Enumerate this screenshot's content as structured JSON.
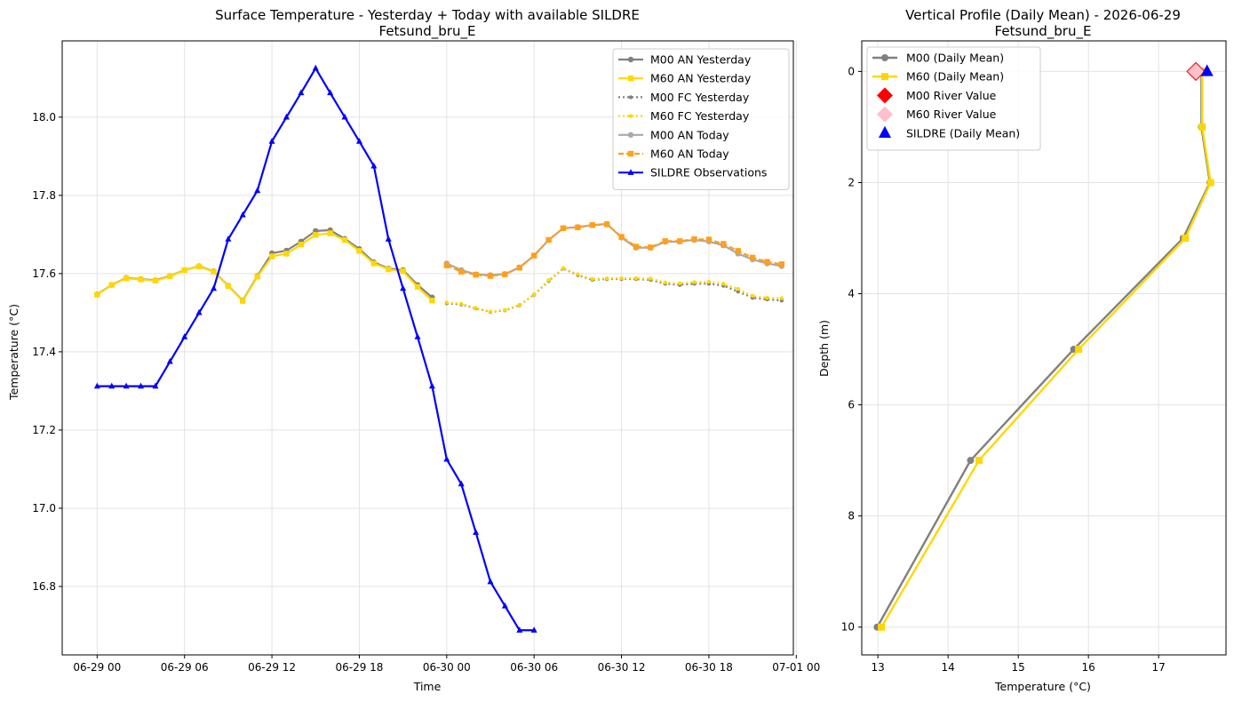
{
  "chart_data": [
    {
      "type": "line",
      "title": "Surface Temperature - Yesterday + Today with available SILDRE",
      "subtitle": "Fetsund_bru_E",
      "xlabel": "Time",
      "ylabel": "Temperature (°C)",
      "xlim": [
        -2.4,
        47.8
      ],
      "ylim": [
        16.625,
        18.195
      ],
      "x_unit": "hours since 06-29 00",
      "xticks": [
        {
          "value": 0,
          "label": "06-29 00"
        },
        {
          "value": 6,
          "label": "06-29 06"
        },
        {
          "value": 12,
          "label": "06-29 12"
        },
        {
          "value": 18,
          "label": "06-29 18"
        },
        {
          "value": 24,
          "label": "06-30 00"
        },
        {
          "value": 30,
          "label": "06-30 06"
        },
        {
          "value": 36,
          "label": "06-30 12"
        },
        {
          "value": 42,
          "label": "06-30 18"
        },
        {
          "value": 48,
          "label": "07-01 00"
        }
      ],
      "yticks": [
        16.8,
        17.0,
        17.2,
        17.4,
        17.6,
        17.8,
        18.0
      ],
      "grid": true,
      "legend_position": "top-right",
      "series": [
        {
          "name": "M00 AN Yesterday",
          "color": "#808080",
          "dash": "",
          "marker": "circle",
          "x": [
            0,
            1,
            2,
            3,
            4,
            5,
            6,
            7,
            8,
            9,
            10,
            11,
            12,
            13,
            14,
            15,
            16,
            17,
            18,
            19,
            20,
            21,
            22,
            23
          ],
          "y": [
            17.547,
            17.571,
            17.589,
            17.586,
            17.583,
            17.594,
            17.609,
            17.619,
            17.606,
            17.569,
            17.531,
            17.594,
            17.652,
            17.659,
            17.682,
            17.709,
            17.711,
            17.689,
            17.663,
            17.629,
            17.613,
            17.609,
            17.571,
            17.539
          ]
        },
        {
          "name": "M60 AN Yesterday",
          "color": "#FFD700",
          "dash": "",
          "marker": "square",
          "x": [
            0,
            1,
            2,
            3,
            4,
            5,
            6,
            7,
            8,
            9,
            10,
            11,
            12,
            13,
            14,
            15,
            16,
            17,
            18,
            19,
            20,
            21,
            22,
            23
          ],
          "y": [
            17.546,
            17.571,
            17.588,
            17.585,
            17.582,
            17.593,
            17.609,
            17.618,
            17.605,
            17.568,
            17.53,
            17.592,
            17.644,
            17.651,
            17.674,
            17.699,
            17.703,
            17.686,
            17.658,
            17.626,
            17.611,
            17.606,
            17.566,
            17.531
          ]
        },
        {
          "name": "M00 FC Yesterday",
          "color": "#808080",
          "dash": "2,3",
          "marker": "circle",
          "x": [
            24,
            25,
            26,
            27,
            28,
            29,
            30,
            31,
            32,
            33,
            34,
            35,
            36,
            37,
            38,
            39,
            40,
            41,
            42,
            43,
            44,
            45,
            46,
            47
          ],
          "y": [
            17.524,
            17.521,
            17.511,
            17.502,
            17.506,
            17.519,
            17.546,
            17.581,
            17.613,
            17.596,
            17.584,
            17.586,
            17.586,
            17.586,
            17.584,
            17.574,
            17.571,
            17.574,
            17.574,
            17.569,
            17.554,
            17.538,
            17.534,
            17.531
          ]
        },
        {
          "name": "M60 FC Yesterday",
          "color": "#FFD700",
          "dash": "2,3",
          "marker": "circle",
          "x": [
            24,
            25,
            26,
            27,
            28,
            29,
            30,
            31,
            32,
            33,
            34,
            35,
            36,
            37,
            38,
            39,
            40,
            41,
            42,
            43,
            44,
            45,
            46,
            47
          ],
          "y": [
            17.526,
            17.523,
            17.512,
            17.503,
            17.507,
            17.52,
            17.547,
            17.583,
            17.614,
            17.598,
            17.586,
            17.588,
            17.588,
            17.588,
            17.587,
            17.577,
            17.575,
            17.578,
            17.579,
            17.574,
            17.561,
            17.543,
            17.538,
            17.537
          ]
        },
        {
          "name": "M00 AN Today",
          "color": "#A9A9A9",
          "dash": "",
          "marker": "circle",
          "x": [
            24,
            25,
            26,
            27,
            28,
            29,
            30,
            31,
            32,
            33,
            34,
            35,
            36,
            37,
            38,
            39,
            40,
            41,
            42,
            43,
            44,
            45,
            46,
            47
          ],
          "y": [
            17.626,
            17.609,
            17.598,
            17.596,
            17.599,
            17.616,
            17.646,
            17.686,
            17.716,
            17.719,
            17.724,
            17.727,
            17.692,
            17.666,
            17.666,
            17.681,
            17.682,
            17.686,
            17.682,
            17.672,
            17.651,
            17.636,
            17.626,
            17.619
          ]
        },
        {
          "name": "M60 AN Today",
          "color": "#FF9F1C",
          "dash": "6,3",
          "marker": "square",
          "x": [
            24,
            25,
            26,
            27,
            28,
            29,
            30,
            31,
            32,
            33,
            34,
            35,
            36,
            37,
            38,
            39,
            40,
            41,
            42,
            43,
            44,
            45,
            46,
            47
          ],
          "y": [
            17.621,
            17.605,
            17.597,
            17.594,
            17.598,
            17.615,
            17.646,
            17.686,
            17.716,
            17.718,
            17.724,
            17.726,
            17.694,
            17.669,
            17.667,
            17.683,
            17.683,
            17.688,
            17.687,
            17.676,
            17.658,
            17.641,
            17.63,
            17.624
          ]
        },
        {
          "name": "SILDRE Observations",
          "color": "#0000FF",
          "dash": "",
          "marker": "triangle",
          "x": [
            0,
            1,
            2,
            3,
            4,
            5,
            6,
            7,
            8,
            9,
            10,
            11,
            12,
            13,
            14,
            15,
            16,
            17,
            18,
            19,
            20,
            21,
            22,
            23,
            24,
            25,
            26,
            27,
            28,
            29,
            30
          ],
          "y": [
            17.312,
            17.312,
            17.312,
            17.312,
            17.312,
            17.375,
            17.438,
            17.5,
            17.562,
            17.688,
            17.75,
            17.812,
            17.938,
            18.0,
            18.062,
            18.125,
            18.062,
            18.0,
            17.938,
            17.875,
            17.688,
            17.562,
            17.438,
            17.312,
            17.125,
            17.062,
            16.938,
            16.812,
            16.75,
            16.688,
            16.688
          ]
        }
      ]
    },
    {
      "type": "line",
      "title": "Vertical Profile (Daily Mean) - 2026-06-29",
      "subtitle": "Fetsund_bru_E",
      "xlabel": "Temperature (°C)",
      "ylabel": "Depth (m)",
      "xlim": [
        12.77,
        17.96
      ],
      "ylim": [
        10.5,
        -0.55
      ],
      "y_inverted": true,
      "xticks": [
        13,
        14,
        15,
        16,
        17
      ],
      "yticks": [
        0,
        2,
        4,
        6,
        8,
        10
      ],
      "grid": true,
      "legend_position": "top-left",
      "series": [
        {
          "name": "M00 (Daily Mean)",
          "color": "#808080",
          "marker": "circle",
          "x": [
            12.99,
            14.32,
            15.79,
            17.35,
            17.73,
            17.61,
            17.61
          ],
          "y": [
            10,
            7,
            5,
            3,
            2,
            1,
            0
          ]
        },
        {
          "name": "M60 (Daily Mean)",
          "color": "#FFD700",
          "marker": "square",
          "x": [
            13.05,
            14.44,
            15.86,
            17.38,
            17.74,
            17.62,
            17.62
          ],
          "y": [
            10,
            7,
            5,
            3,
            2,
            1,
            0
          ]
        },
        {
          "name": "M00 River Value",
          "color": "#FF0000",
          "marker": "diamond",
          "x": [
            17.53
          ],
          "y": [
            0
          ]
        },
        {
          "name": "M60 River Value",
          "color": "#FFC0CB",
          "marker": "diamond",
          "x": [
            17.53
          ],
          "y": [
            0
          ]
        },
        {
          "name": "SILDRE (Daily Mean)",
          "color": "#0000FF",
          "marker": "triangle",
          "x": [
            17.69
          ],
          "y": [
            0
          ]
        }
      ]
    }
  ]
}
